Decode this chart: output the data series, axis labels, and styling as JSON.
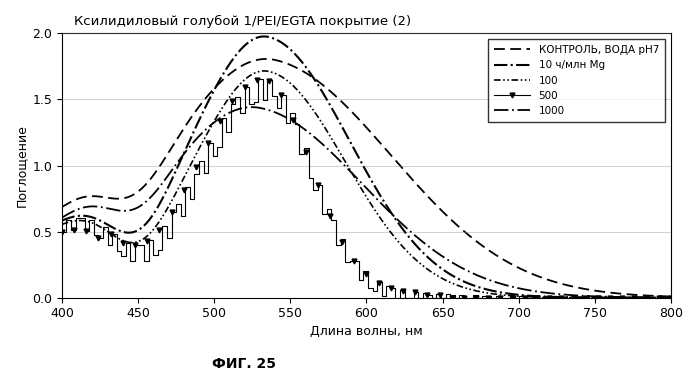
{
  "title": "Ксилидиловый голубой 1/PEI/EGTA покрытие (2)",
  "xlabel": "Длина волны, нм",
  "ylabel": "Поглощение",
  "caption": "ФИГ. 25",
  "xlim": [
    400,
    800
  ],
  "ylim": [
    0,
    2.0
  ],
  "xticks": [
    400,
    450,
    500,
    550,
    600,
    650,
    700,
    750,
    800
  ],
  "yticks": [
    0,
    0.5,
    1.0,
    1.5,
    2.0
  ],
  "legend_labels": [
    "КОНТРОЛЬ, ВОДА pH7",
    "10 ч/млн Mg",
    "100",
    "500",
    "1000"
  ],
  "background_color": "#ffffff"
}
